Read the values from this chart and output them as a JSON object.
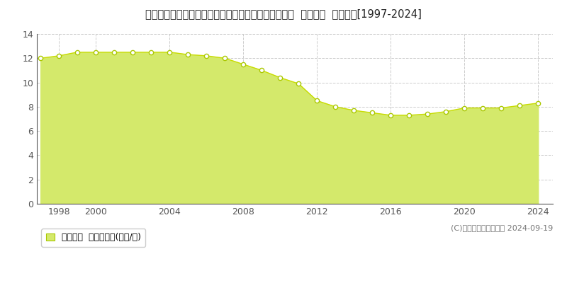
{
  "title": "岩手県紫波郡矢巾町流通センター南４丁目１６番１８  基準地価  地価推移[1997-2024]",
  "years": [
    1997,
    1998,
    1999,
    2000,
    2001,
    2002,
    2003,
    2004,
    2005,
    2006,
    2007,
    2008,
    2009,
    2010,
    2011,
    2012,
    2013,
    2014,
    2015,
    2016,
    2017,
    2018,
    2019,
    2020,
    2021,
    2022,
    2023,
    2024
  ],
  "values": [
    12.0,
    12.2,
    12.5,
    12.5,
    12.5,
    12.5,
    12.5,
    12.5,
    12.3,
    12.2,
    12.0,
    11.5,
    11.0,
    10.4,
    9.9,
    8.5,
    8.0,
    7.7,
    7.5,
    7.3,
    7.3,
    7.4,
    7.6,
    7.9,
    7.9,
    7.9,
    8.1,
    8.3
  ],
  "ylim": [
    0,
    14
  ],
  "yticks": [
    0,
    2,
    4,
    6,
    8,
    10,
    12,
    14
  ],
  "xticks": [
    1998,
    2000,
    2004,
    2008,
    2012,
    2016,
    2020,
    2024
  ],
  "xlim_left": 1996.8,
  "xlim_right": 2024.8,
  "fill_color": "#d4e96b",
  "line_color": "#c8dc00",
  "marker_facecolor": "#ffffff",
  "marker_edgecolor": "#aac800",
  "grid_color": "#cccccc",
  "bg_color": "#ffffff",
  "plot_bg_color": "#ffffff",
  "legend_label": "基準地価  平均坪単価(万円/坪)",
  "legend_patch_color": "#d4e96b",
  "legend_patch_edgecolor": "#aac800",
  "copyright_text": "(C)土地価格ドットコム 2024-09-19",
  "title_fontsize": 10.5,
  "axis_fontsize": 9,
  "legend_fontsize": 9,
  "copyright_fontsize": 8
}
